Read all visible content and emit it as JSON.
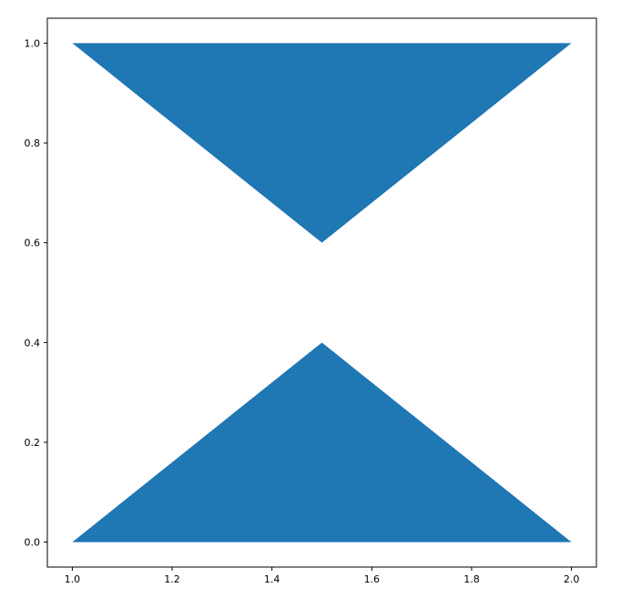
{
  "chart_data": {
    "type": "area",
    "title": "",
    "xlabel": "",
    "ylabel": "",
    "xlim": [
      0.95,
      2.05
    ],
    "ylim": [
      -0.05,
      1.05
    ],
    "grid": false,
    "x_ticks": [
      "1.0",
      "1.2",
      "1.4",
      "1.6",
      "1.8",
      "2.0"
    ],
    "y_ticks": [
      "0.0",
      "0.2",
      "0.4",
      "0.6",
      "0.8",
      "1.0"
    ],
    "polygons": [
      {
        "points": [
          [
            1.0,
            0.0
          ],
          [
            1.5,
            0.4
          ],
          [
            2.0,
            0.0
          ]
        ],
        "color": "#1f77b4"
      },
      {
        "points": [
          [
            1.0,
            1.0
          ],
          [
            1.5,
            0.6
          ],
          [
            2.0,
            1.0
          ]
        ],
        "color": "#1f77b4"
      }
    ]
  }
}
